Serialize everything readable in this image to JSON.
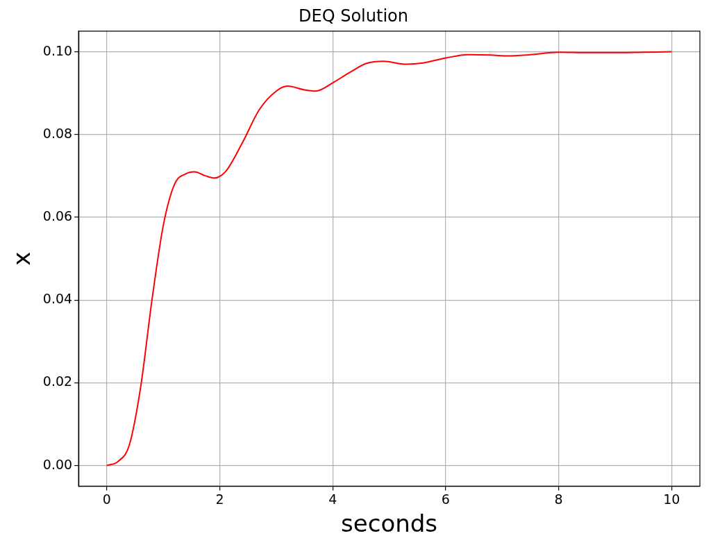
{
  "chart_data": {
    "type": "line",
    "title": "DEQ Solution",
    "xlabel": "seconds",
    "ylabel": "x",
    "xlim": [
      -0.5,
      10.5
    ],
    "ylim": [
      -0.005,
      0.105
    ],
    "xticks": [
      0,
      2,
      4,
      6,
      8,
      10
    ],
    "yticks": [
      {
        "value": 0,
        "label": "0.00"
      },
      {
        "value": 0.02,
        "label": "0.02"
      },
      {
        "value": 0.04,
        "label": "0.04"
      },
      {
        "value": 0.06,
        "label": "0.06"
      },
      {
        "value": 0.08,
        "label": "0.08"
      },
      {
        "value": 0.1,
        "label": "0.10"
      }
    ],
    "grid": true,
    "legend": false,
    "marker": "none",
    "line_style": "solid",
    "series": [
      {
        "color": "#ff0000",
        "x": [
          0,
          0.2,
          0.4,
          0.6,
          0.8,
          1.0,
          1.2,
          1.4,
          1.55,
          1.75,
          1.9,
          2.1,
          2.4,
          2.7,
          3.0,
          3.2,
          3.5,
          3.7,
          4.0,
          4.3,
          4.6,
          4.9,
          5.3,
          5.6,
          6.0,
          6.4,
          6.8,
          7.1,
          7.5,
          8.0,
          8.5,
          9.0,
          9.5,
          10
        ],
        "values": [
          0,
          0.001,
          0.005,
          0.019,
          0.04,
          0.058,
          0.068,
          0.0705,
          0.071,
          0.07,
          0.0695,
          0.071,
          0.078,
          0.086,
          0.0905,
          0.0917,
          0.0908,
          0.0905,
          0.0925,
          0.095,
          0.0972,
          0.0977,
          0.097,
          0.0973,
          0.0985,
          0.0993,
          0.0992,
          0.099,
          0.0993,
          0.0999,
          0.0998,
          0.0998,
          0.0999,
          0.1
        ]
      }
    ]
  }
}
